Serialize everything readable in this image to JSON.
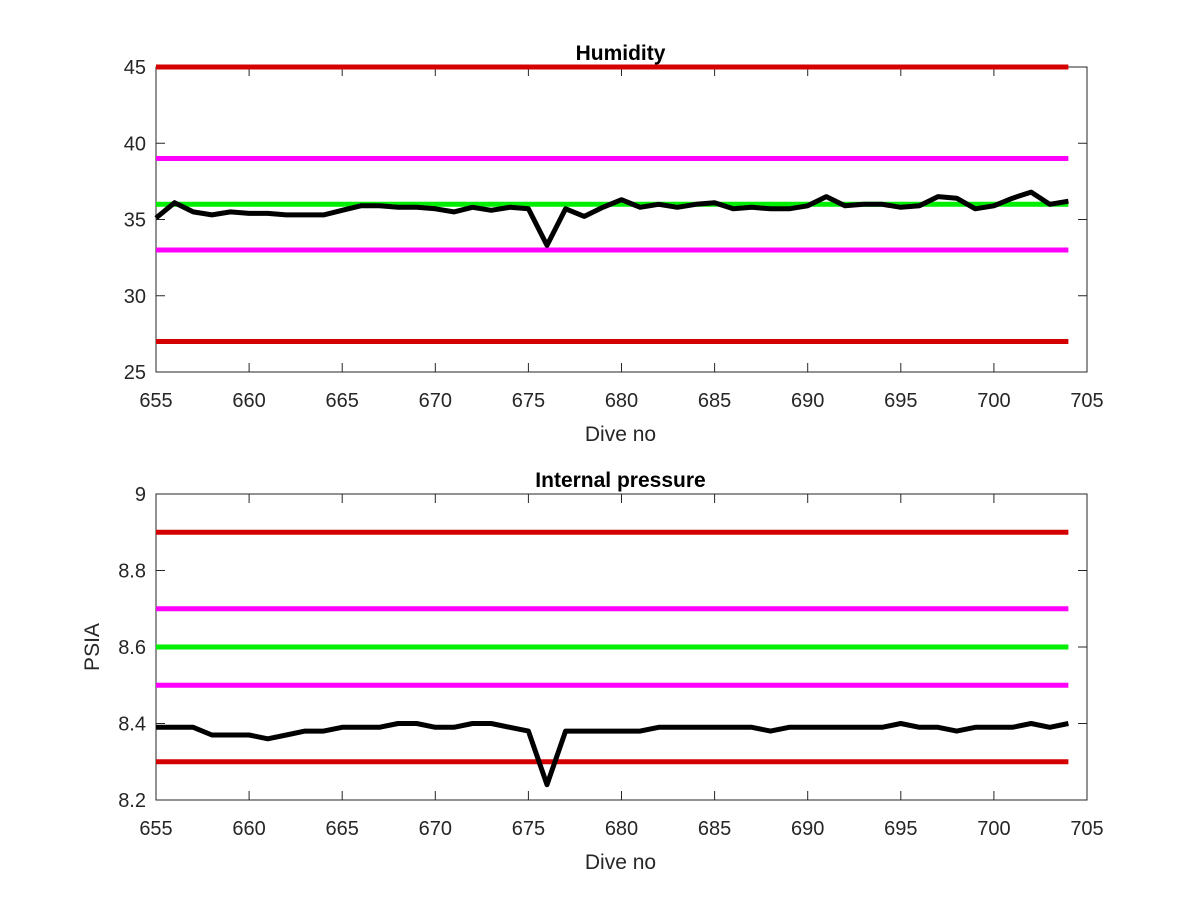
{
  "chart_data": [
    {
      "type": "line",
      "title": "Humidity",
      "xlabel": "Dive no",
      "ylabel": "",
      "xlim": [
        655,
        705
      ],
      "ylim": [
        25,
        45
      ],
      "xticks": [
        "655",
        "660",
        "665",
        "670",
        "675",
        "680",
        "685",
        "690",
        "695",
        "700",
        "705"
      ],
      "yticks": [
        "25",
        "30",
        "35",
        "40",
        "45"
      ],
      "grid": false,
      "reference_lines": [
        {
          "y": 45,
          "color": "#d40000"
        },
        {
          "y": 39,
          "color": "#ff00ff"
        },
        {
          "y": 36,
          "color": "#00ee00"
        },
        {
          "y": 33,
          "color": "#ff00ff"
        },
        {
          "y": 27,
          "color": "#d40000"
        }
      ],
      "series": [
        {
          "color": "#000000",
          "x": [
            655,
            656,
            657,
            658,
            659,
            660,
            661,
            662,
            663,
            664,
            665,
            666,
            667,
            668,
            669,
            670,
            671,
            672,
            673,
            674,
            675,
            676,
            677,
            678,
            679,
            680,
            681,
            682,
            683,
            684,
            685,
            686,
            687,
            688,
            689,
            690,
            691,
            692,
            693,
            694,
            695,
            696,
            697,
            698,
            699,
            700,
            701,
            702,
            703,
            704
          ],
          "y": [
            35.1,
            36.1,
            35.5,
            35.3,
            35.5,
            35.4,
            35.4,
            35.3,
            35.3,
            35.3,
            35.6,
            35.9,
            35.9,
            35.8,
            35.8,
            35.7,
            35.5,
            35.8,
            35.6,
            35.8,
            35.7,
            33.3,
            35.7,
            35.2,
            35.8,
            36.3,
            35.8,
            36.0,
            35.8,
            36.0,
            36.1,
            35.7,
            35.8,
            35.7,
            35.7,
            35.9,
            36.5,
            35.9,
            36.0,
            36.0,
            35.8,
            35.9,
            36.5,
            36.4,
            35.7,
            35.9,
            36.4,
            36.8,
            36.0,
            36.2
          ]
        }
      ]
    },
    {
      "type": "line",
      "title": "Internal pressure",
      "xlabel": "Dive no",
      "ylabel": "PSIA",
      "xlim": [
        655,
        705
      ],
      "ylim": [
        8.2,
        9.0
      ],
      "xticks": [
        "655",
        "660",
        "665",
        "670",
        "675",
        "680",
        "685",
        "690",
        "695",
        "700",
        "705"
      ],
      "yticks": [
        "8.2",
        "8.4",
        "8.6",
        "8.8",
        "9"
      ],
      "grid": false,
      "reference_lines": [
        {
          "y": 8.9,
          "color": "#d40000"
        },
        {
          "y": 8.7,
          "color": "#ff00ff"
        },
        {
          "y": 8.6,
          "color": "#00ee00"
        },
        {
          "y": 8.5,
          "color": "#ff00ff"
        },
        {
          "y": 8.3,
          "color": "#d40000"
        }
      ],
      "series": [
        {
          "color": "#000000",
          "x": [
            655,
            656,
            657,
            658,
            659,
            660,
            661,
            662,
            663,
            664,
            665,
            666,
            667,
            668,
            669,
            670,
            671,
            672,
            673,
            674,
            675,
            676,
            677,
            678,
            679,
            680,
            681,
            682,
            683,
            684,
            685,
            686,
            687,
            688,
            689,
            690,
            691,
            692,
            693,
            694,
            695,
            696,
            697,
            698,
            699,
            700,
            701,
            702,
            703,
            704
          ],
          "y": [
            8.39,
            8.39,
            8.39,
            8.37,
            8.37,
            8.37,
            8.36,
            8.37,
            8.38,
            8.38,
            8.39,
            8.39,
            8.39,
            8.4,
            8.4,
            8.39,
            8.39,
            8.4,
            8.4,
            8.39,
            8.38,
            8.24,
            8.38,
            8.38,
            8.38,
            8.38,
            8.38,
            8.39,
            8.39,
            8.39,
            8.39,
            8.39,
            8.39,
            8.38,
            8.39,
            8.39,
            8.39,
            8.39,
            8.39,
            8.39,
            8.4,
            8.39,
            8.39,
            8.38,
            8.39,
            8.39,
            8.39,
            8.4,
            8.39,
            8.4
          ]
        }
      ]
    }
  ]
}
